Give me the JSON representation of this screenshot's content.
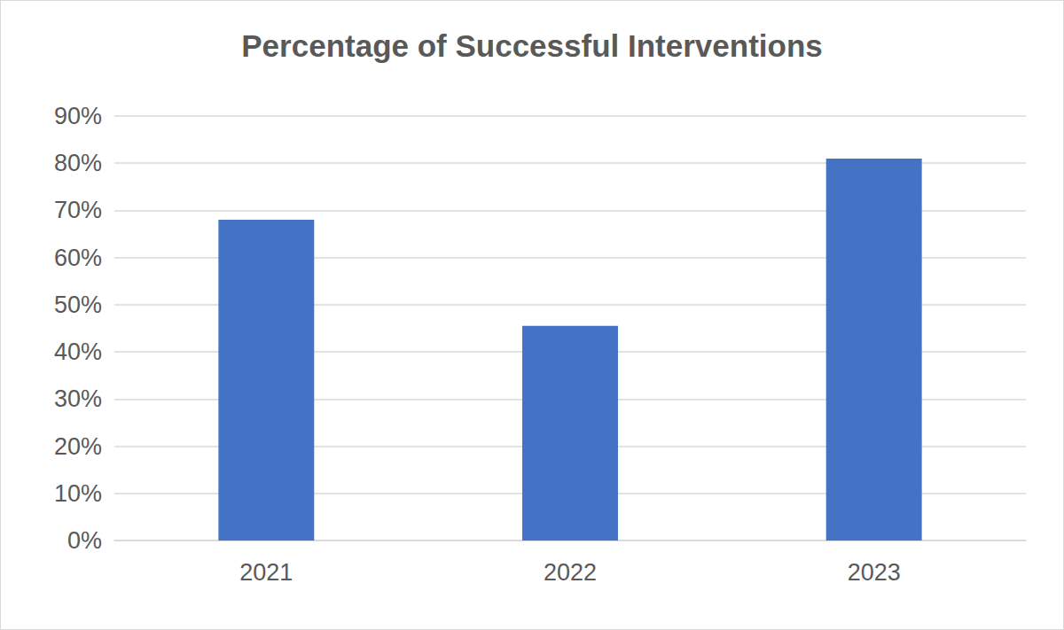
{
  "chart_data": {
    "type": "bar",
    "title": "Percentage of Successful Interventions",
    "categories": [
      "2021",
      "2022",
      "2023"
    ],
    "values": [
      68,
      45.5,
      81
    ],
    "color": "#4472c4",
    "ylim": [
      0,
      90
    ],
    "yticks": [
      {
        "value": 0,
        "label": "0%"
      },
      {
        "value": 10,
        "label": "10%"
      },
      {
        "value": 20,
        "label": "20%"
      },
      {
        "value": 30,
        "label": "30%"
      },
      {
        "value": 40,
        "label": "40%"
      },
      {
        "value": 50,
        "label": "50%"
      },
      {
        "value": 60,
        "label": "60%"
      },
      {
        "value": 70,
        "label": "70%"
      },
      {
        "value": 80,
        "label": "80%"
      },
      {
        "value": 90,
        "label": "90%"
      }
    ],
    "grid": true
  }
}
